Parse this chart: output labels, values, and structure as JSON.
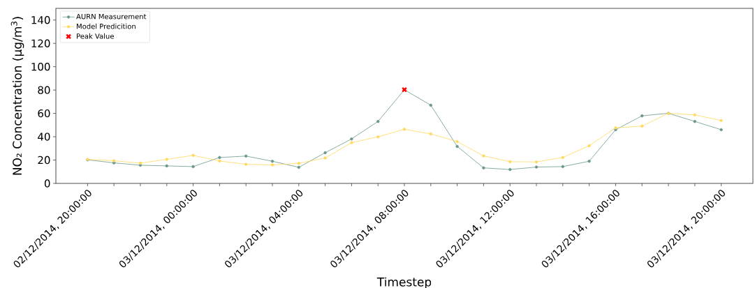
{
  "chart_data": {
    "type": "line",
    "xlabel": "Timestep",
    "ylabel": "NO₂ Concentration (µg/m$^{3}$)",
    "x": [
      "2014-12-02T20:00",
      "2014-12-02T21:00",
      "2014-12-02T22:00",
      "2014-12-02T23:00",
      "2014-12-03T00:00",
      "2014-12-03T01:00",
      "2014-12-03T02:00",
      "2014-12-03T03:00",
      "2014-12-03T04:00",
      "2014-12-03T05:00",
      "2014-12-03T06:00",
      "2014-12-03T07:00",
      "2014-12-03T08:00",
      "2014-12-03T09:00",
      "2014-12-03T10:00",
      "2014-12-03T11:00",
      "2014-12-03T12:00",
      "2014-12-03T13:00",
      "2014-12-03T14:00",
      "2014-12-03T15:00",
      "2014-12-03T16:00",
      "2014-12-03T17:00",
      "2014-12-03T18:00",
      "2014-12-03T19:00",
      "2014-12-03T20:00"
    ],
    "series": [
      {
        "name": "AURN Measurement",
        "color": "#6b988b",
        "marker": "circle",
        "values": [
          20.2,
          17.6,
          15.6,
          15.0,
          14.4,
          22.2,
          23.4,
          19.0,
          13.8,
          26.3,
          38.1,
          53.1,
          80.3,
          67.0,
          31.7,
          13.3,
          11.9,
          14.0,
          14.4,
          19.0,
          46.0,
          57.9,
          60.1,
          53.1,
          46.0
        ]
      },
      {
        "name": "Model Predicition",
        "color": "#ffd95e",
        "marker": "circle",
        "values": [
          20.6,
          19.4,
          17.4,
          20.6,
          24.0,
          19.2,
          16.4,
          15.8,
          17.2,
          21.8,
          34.9,
          39.9,
          46.4,
          42.4,
          35.9,
          23.6,
          18.6,
          18.4,
          22.2,
          32.3,
          47.6,
          49.1,
          60.1,
          58.7,
          53.9
        ]
      },
      {
        "name": "Peak Value",
        "type": "scatter",
        "color": "#ff0000",
        "marker": "cross",
        "x": [
          "2014-12-03T08:00"
        ],
        "values": [
          80.3
        ]
      }
    ],
    "xlim": [
      "2014-12-02T18:48",
      "2014-12-03T21:12"
    ],
    "xticks": [
      {
        "value": "2014-12-02T20:00",
        "label": "02/12/2014, 20:00:00"
      },
      {
        "value": "2014-12-02T21:00",
        "label": null
      },
      {
        "value": "2014-12-02T22:00",
        "label": null
      },
      {
        "value": "2014-12-02T23:00",
        "label": null
      },
      {
        "value": "2014-12-03T00:00",
        "label": "03/12/2014, 00:00:00"
      },
      {
        "value": "2014-12-03T01:00",
        "label": null
      },
      {
        "value": "2014-12-03T02:00",
        "label": null
      },
      {
        "value": "2014-12-03T03:00",
        "label": null
      },
      {
        "value": "2014-12-03T04:00",
        "label": "03/12/2014, 04:00:00"
      },
      {
        "value": "2014-12-03T05:00",
        "label": null
      },
      {
        "value": "2014-12-03T06:00",
        "label": null
      },
      {
        "value": "2014-12-03T07:00",
        "label": null
      },
      {
        "value": "2014-12-03T08:00",
        "label": "03/12/2014, 08:00:00"
      },
      {
        "value": "2014-12-03T09:00",
        "label": null
      },
      {
        "value": "2014-12-03T10:00",
        "label": null
      },
      {
        "value": "2014-12-03T11:00",
        "label": null
      },
      {
        "value": "2014-12-03T12:00",
        "label": "03/12/2014, 12:00:00"
      },
      {
        "value": "2014-12-03T13:00",
        "label": null
      },
      {
        "value": "2014-12-03T14:00",
        "label": null
      },
      {
        "value": "2014-12-03T15:00",
        "label": null
      },
      {
        "value": "2014-12-03T16:00",
        "label": "03/12/2014, 16:00:00"
      },
      {
        "value": "2014-12-03T17:00",
        "label": null
      },
      {
        "value": "2014-12-03T18:00",
        "label": null
      },
      {
        "value": "2014-12-03T19:00",
        "label": null
      },
      {
        "value": "2014-12-03T20:00",
        "label": "03/12/2014, 20:00:00"
      }
    ],
    "ylim": [
      0,
      150
    ],
    "yticks": [
      0,
      20,
      40,
      60,
      80,
      100,
      120,
      140
    ],
    "legend": "top left",
    "grid": false
  }
}
